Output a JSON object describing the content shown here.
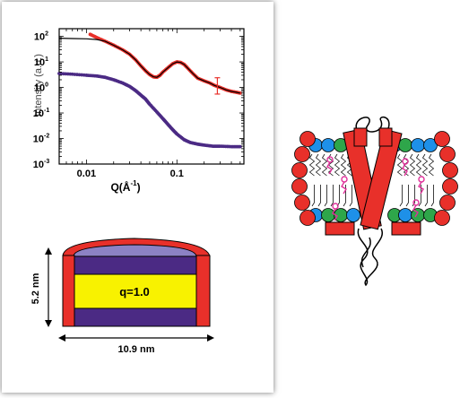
{
  "figure": {
    "plot": {
      "ylabel": "Intensity (a.u.)",
      "xlabel": "Q(Å",
      "xlabel_exp": "-1",
      "xlabel_close": ")",
      "x_ticks": [
        {
          "v": 0.01,
          "label": "0.01"
        },
        {
          "v": 0.1,
          "label": "0.1"
        }
      ],
      "y_ticks": [
        {
          "base": "10",
          "exp": "2",
          "v": 2
        },
        {
          "base": "10",
          "exp": "1",
          "v": 1
        },
        {
          "base": "10",
          "exp": "0",
          "v": 0
        },
        {
          "base": "10",
          "exp": "-1",
          "v": -1
        },
        {
          "base": "10",
          "exp": "-2",
          "v": -2
        },
        {
          "base": "10",
          "exp": "-3",
          "v": -3
        }
      ]
    },
    "nanodisc": {
      "core_label": "q=1.0",
      "height_label": "5.2 nm",
      "width_label": "10.9 nm"
    },
    "colors": {
      "red": "#e8302a",
      "purple": "#4b2a84",
      "yellow": "#f8f200",
      "blue": "#1e90e8",
      "green": "#2ea64a",
      "magenta": "#e0309a",
      "lavender": "#8c82c4"
    }
  },
  "chart_data": {
    "type": "scatter",
    "title": "",
    "xlabel": "Q(Å-1)",
    "ylabel": "Intensity (a.u.)",
    "xscale": "log",
    "yscale": "log",
    "xlim": [
      0.005,
      0.55
    ],
    "ylim": [
      0.001,
      200
    ],
    "series": [
      {
        "color": "#e8302a",
        "style": "points",
        "x": [
          0.011,
          0.013,
          0.016,
          0.02,
          0.025,
          0.03,
          0.035,
          0.04,
          0.045,
          0.05,
          0.055,
          0.06,
          0.065,
          0.07,
          0.08,
          0.09,
          0.1,
          0.11,
          0.12,
          0.13,
          0.15,
          0.17,
          0.2,
          0.23,
          0.26,
          0.3,
          0.35,
          0.4,
          0.45,
          0.5
        ],
        "y": [
          120,
          90,
          65,
          45,
          30,
          20,
          12,
          7,
          4.5,
          3.2,
          2.6,
          2.5,
          3.0,
          4.0,
          6.0,
          8.5,
          10,
          9.5,
          8.0,
          6.0,
          3.5,
          2.3,
          1.8,
          1.5,
          1.2,
          1.0,
          0.8,
          0.7,
          0.65,
          0.6
        ]
      },
      {
        "color": "#000000",
        "style": "line",
        "x": [
          0.005,
          0.007,
          0.01,
          0.013,
          0.016,
          0.02,
          0.025,
          0.03,
          0.035,
          0.04,
          0.045,
          0.05,
          0.055,
          0.06,
          0.065,
          0.07,
          0.08,
          0.09,
          0.1,
          0.11,
          0.12,
          0.13,
          0.15,
          0.17,
          0.2,
          0.23,
          0.26,
          0.3,
          0.35,
          0.4,
          0.45,
          0.5
        ],
        "y": [
          85,
          82,
          80,
          75,
          65,
          45,
          30,
          20,
          12,
          7,
          4.5,
          3.2,
          2.6,
          2.5,
          3.0,
          4.0,
          6.0,
          8.5,
          10,
          9.5,
          8.0,
          6.0,
          3.5,
          2.3,
          1.8,
          1.5,
          1.2,
          1.0,
          0.8,
          0.7,
          0.65,
          0.6
        ]
      },
      {
        "color": "#4b2a84",
        "style": "points",
        "x": [
          0.005,
          0.007,
          0.01,
          0.013,
          0.016,
          0.02,
          0.025,
          0.03,
          0.035,
          0.04,
          0.045,
          0.05,
          0.06,
          0.07,
          0.08,
          0.09,
          0.1,
          0.12,
          0.14,
          0.17,
          0.2,
          0.25,
          0.3,
          0.4,
          0.5
        ],
        "y": [
          3.5,
          3.3,
          3.0,
          2.8,
          2.5,
          2.0,
          1.5,
          1.1,
          0.75,
          0.5,
          0.35,
          0.22,
          0.11,
          0.06,
          0.035,
          0.022,
          0.015,
          0.009,
          0.007,
          0.006,
          0.0055,
          0.005,
          0.005,
          0.0048,
          0.0048
        ]
      }
    ]
  }
}
